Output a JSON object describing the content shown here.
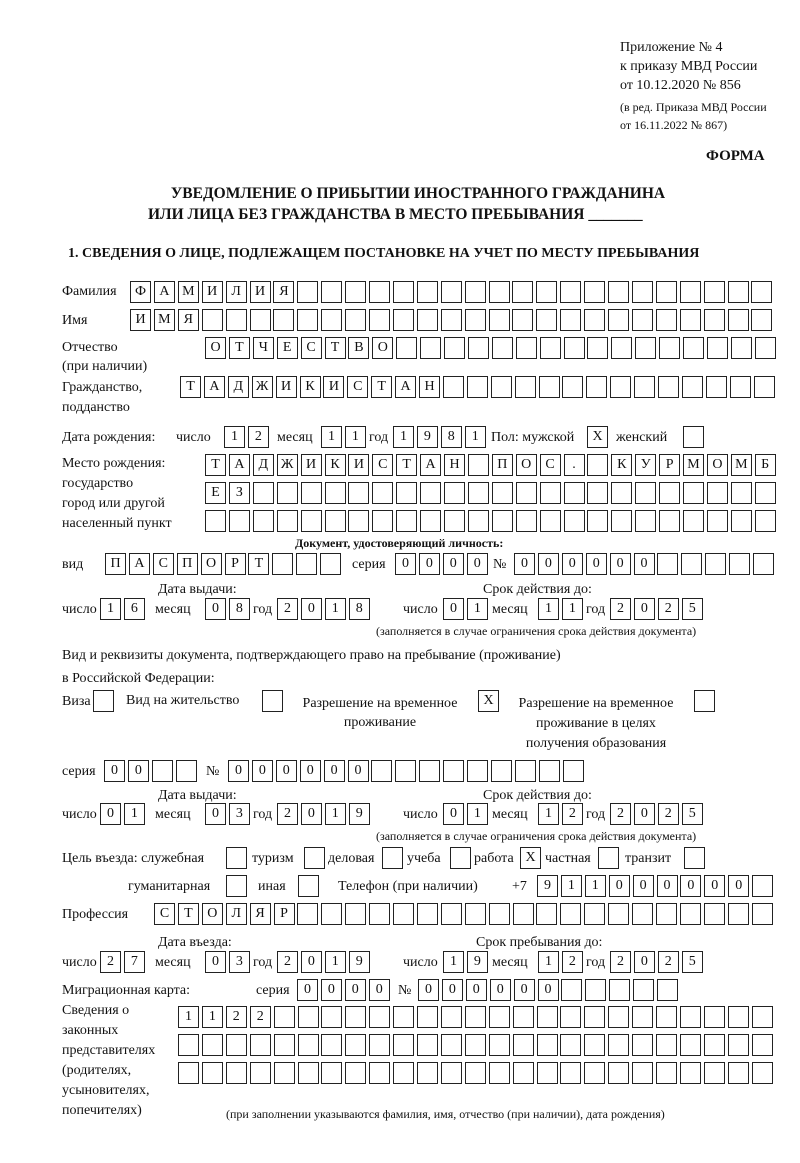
{
  "header": {
    "appendix": "Приложение № 4",
    "order": "к приказу МВД России",
    "order_date": "от 10.12.2020 № 856",
    "edition1": "(в ред. Приказа МВД России",
    "edition2": "от 16.11.2022 № 867)",
    "form_label": "ФОРМА",
    "title1": "УВЕДОМЛЕНИЕ О ПРИБЫТИИ ИНОСТРАННОГО ГРАЖДАНИНА",
    "title2": "ИЛИ ЛИЦА БЕЗ ГРАЖДАНСТВА В МЕСТО ПРЕБЫВАНИЯ",
    "title_blank": "_______"
  },
  "section1": {
    "title": "1. СВЕДЕНИЯ О ЛИЦЕ, ПОДЛЕЖАЩЕМ ПОСТАНОВКЕ НА УЧЕТ ПО МЕСТУ ПРЕБЫВАНИЯ",
    "surname": {
      "label": "Фамилия",
      "cells": [
        "Ф",
        "А",
        "М",
        "И",
        "Л",
        "И",
        "Я",
        "",
        "",
        "",
        "",
        "",
        "",
        "",
        "",
        "",
        "",
        "",
        "",
        "",
        "",
        "",
        "",
        "",
        "",
        "",
        ""
      ]
    },
    "name": {
      "label": "Имя",
      "cells": [
        "И",
        "М",
        "Я",
        "",
        "",
        "",
        "",
        "",
        "",
        "",
        "",
        "",
        "",
        "",
        "",
        "",
        "",
        "",
        "",
        "",
        "",
        "",
        "",
        "",
        "",
        "",
        ""
      ]
    },
    "patronymic": {
      "label1": "Отчество",
      "label2": "(при наличии)",
      "cells": [
        "О",
        "Т",
        "Ч",
        "Е",
        "С",
        "Т",
        "В",
        "О",
        "",
        "",
        "",
        "",
        "",
        "",
        "",
        "",
        "",
        "",
        "",
        "",
        "",
        "",
        "",
        ""
      ]
    },
    "citizenship": {
      "label1": "Гражданство,",
      "label2": "подданство",
      "cells": [
        "Т",
        "А",
        "Д",
        "Ж",
        "И",
        "К",
        "И",
        "С",
        "Т",
        "А",
        "Н",
        "",
        "",
        "",
        "",
        "",
        "",
        "",
        "",
        "",
        "",
        "",
        "",
        "",
        ""
      ]
    },
    "birth_date": {
      "label": "Дата рождения:",
      "day_label": "число",
      "month_label": "месяц",
      "year_label": "год",
      "day": [
        "1",
        "2"
      ],
      "month": [
        "1",
        "1"
      ],
      "year": [
        "1",
        "9",
        "8",
        "1"
      ]
    },
    "sex": {
      "label": "Пол: мужской",
      "male": [
        "X"
      ],
      "female_label": "женский",
      "female": [
        ""
      ]
    },
    "birth_place": {
      "label1": "Место рождения:",
      "label2": "государство",
      "label3": "город или другой",
      "label4": "населенный пункт",
      "row1": [
        "Т",
        "А",
        "Д",
        "Ж",
        "И",
        "К",
        "И",
        "С",
        "Т",
        "А",
        "Н",
        "",
        "П",
        "О",
        "С",
        ".",
        "",
        "К",
        "У",
        "Р",
        "М",
        "О",
        "М",
        "Б"
      ],
      "row2": [
        "Е",
        "З",
        "",
        "",
        "",
        "",
        "",
        "",
        "",
        "",
        "",
        "",
        "",
        "",
        "",
        "",
        "",
        "",
        "",
        "",
        "",
        "",
        "",
        ""
      ],
      "row3": [
        "",
        "",
        "",
        "",
        "",
        "",
        "",
        "",
        "",
        "",
        "",
        "",
        "",
        "",
        "",
        "",
        "",
        "",
        "",
        "",
        "",
        "",
        "",
        ""
      ]
    },
    "id_doc": {
      "title": "Документ, удостоверяющий личность:",
      "kind_label": "вид",
      "kind": [
        "П",
        "А",
        "С",
        "П",
        "О",
        "Р",
        "Т",
        "",
        "",
        ""
      ],
      "series_label": "серия",
      "series": [
        "0",
        "0",
        "0",
        "0"
      ],
      "number_label": "№",
      "number": [
        "0",
        "0",
        "0",
        "0",
        "0",
        "0",
        "",
        "",
        "",
        "",
        ""
      ],
      "issue_label": "Дата выдачи:",
      "issue": {
        "day": [
          "1",
          "6"
        ],
        "month": [
          "0",
          "8"
        ],
        "year": [
          "2",
          "0",
          "1",
          "8"
        ]
      },
      "valid_label": "Срок действия до:",
      "valid": {
        "day": [
          "0",
          "1"
        ],
        "month": [
          "1",
          "1"
        ],
        "year": [
          "2",
          "0",
          "2",
          "5"
        ]
      },
      "note": "(заполняется в случае ограничения срока действия документа)"
    },
    "stay_doc": {
      "intro1": "Вид и реквизиты документа, подтверждающего право на пребывание (проживание)",
      "intro2": "в Российской Федерации:",
      "visa_label": "Виза",
      "visa": [
        ""
      ],
      "residence_label": "Вид на жительство",
      "residence": [
        ""
      ],
      "temp_label1": "Разрешение на временное",
      "temp_label2": "проживание",
      "temp": [
        "X"
      ],
      "edu_label1": "Разрешение на временное",
      "edu_label2": "проживание в целях",
      "edu_label3": "получения образования",
      "edu": [
        ""
      ],
      "series_label": "серия",
      "series": [
        "0",
        "0",
        "",
        ""
      ],
      "number_label": "№",
      "number": [
        "0",
        "0",
        "0",
        "0",
        "0",
        "0",
        "",
        "",
        "",
        "",
        "",
        "",
        "",
        "",
        ""
      ],
      "issue_label": "Дата выдачи:",
      "issue": {
        "day": [
          "0",
          "1"
        ],
        "month": [
          "0",
          "3"
        ],
        "year": [
          "2",
          "0",
          "1",
          "9"
        ]
      },
      "valid_label": "Срок действия до:",
      "valid": {
        "day": [
          "0",
          "1"
        ],
        "month": [
          "1",
          "2"
        ],
        "year": [
          "2",
          "0",
          "2",
          "5"
        ]
      },
      "note": "(заполняется в случае ограничения срока действия документа)"
    },
    "purpose": {
      "label": "Цель въезда: служебная",
      "service": [
        ""
      ],
      "tourism_label": "туризм",
      "tourism": [
        ""
      ],
      "business_label": "деловая",
      "business": [
        ""
      ],
      "study_label": "учеба",
      "study": [
        ""
      ],
      "work_label": "работа",
      "work": [
        "X"
      ],
      "private_label": "частная",
      "private": [
        ""
      ],
      "transit_label": "транзит",
      "transit": [
        ""
      ],
      "humanitarian_label": "гуманитарная",
      "humanitarian": [
        ""
      ],
      "other_label": "иная",
      "other": [
        ""
      ]
    },
    "phone": {
      "label": "Телефон (при наличии)",
      "prefix": "+7",
      "cells": [
        "9",
        "1",
        "1",
        "0",
        "0",
        "0",
        "0",
        "0",
        "0",
        ""
      ]
    },
    "profession": {
      "label": "Профессия",
      "cells": [
        "С",
        "Т",
        "О",
        "Л",
        "Я",
        "Р",
        "",
        "",
        "",
        "",
        "",
        "",
        "",
        "",
        "",
        "",
        "",
        "",
        "",
        "",
        "",
        "",
        "",
        "",
        "",
        ""
      ]
    },
    "entry": {
      "entry_label": "Дата въезда:",
      "entry": {
        "day": [
          "2",
          "7"
        ],
        "month": [
          "0",
          "3"
        ],
        "year": [
          "2",
          "0",
          "1",
          "9"
        ]
      },
      "stay_label": "Срок пребывания до:",
      "stay": {
        "day": [
          "1",
          "9"
        ],
        "month": [
          "1",
          "2"
        ],
        "year": [
          "2",
          "0",
          "2",
          "5"
        ]
      }
    },
    "migration_card": {
      "label": "Миграционная карта:",
      "series_label": "серия",
      "series": [
        "0",
        "0",
        "0",
        "0"
      ],
      "number_label": "№",
      "number": [
        "0",
        "0",
        "0",
        "0",
        "0",
        "0",
        "",
        "",
        "",
        "",
        ""
      ]
    },
    "representatives": {
      "label1": "Сведения о",
      "label2": "законных",
      "label3": "представителях",
      "label4": "(родителях,",
      "label5": "усыновителях,",
      "label6": "попечителях)",
      "row1": [
        "1",
        "1",
        "2",
        "2",
        "",
        "",
        "",
        "",
        "",
        "",
        "",
        "",
        "",
        "",
        "",
        "",
        "",
        "",
        "",
        "",
        "",
        "",
        "",
        "",
        ""
      ],
      "row2": [
        "",
        "",
        "",
        "",
        "",
        "",
        "",
        "",
        "",
        "",
        "",
        "",
        "",
        "",
        "",
        "",
        "",
        "",
        "",
        "",
        "",
        "",
        "",
        "",
        ""
      ],
      "row3": [
        "",
        "",
        "",
        "",
        "",
        "",
        "",
        "",
        "",
        "",
        "",
        "",
        "",
        "",
        "",
        "",
        "",
        "",
        "",
        "",
        "",
        "",
        "",
        "",
        ""
      ],
      "note": "(при заполнении указываются фамилия, имя, отчество (при наличии), дата рождения)"
    },
    "common": {
      "day_label": "число",
      "month_label": "месяц",
      "year_label": "год"
    }
  }
}
